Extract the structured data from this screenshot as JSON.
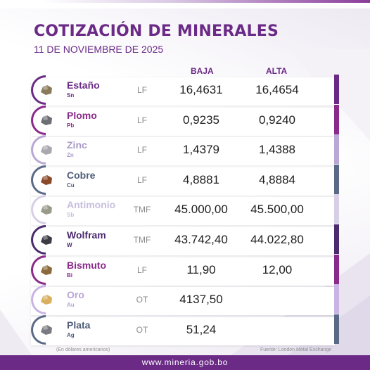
{
  "header": {
    "title": "COTIZACIÓN DE MINERALES",
    "date": "11 DE NOVIEMBRE DE 2025"
  },
  "columns": {
    "low": "BAJA",
    "high": "ALTA"
  },
  "minerals": [
    {
      "name": "Estaño",
      "symbol": "Sn",
      "unit": "LF",
      "low": "16,4631",
      "high": "16,4654",
      "accent": "#6a2a86",
      "name_color": "#6a2a86"
    },
    {
      "name": "Plomo",
      "symbol": "Pb",
      "unit": "LF",
      "low": "0,9235",
      "high": "0,9240",
      "accent": "#8a2a8a",
      "name_color": "#8a2a8a"
    },
    {
      "name": "Zinc",
      "symbol": "Zn",
      "unit": "LF",
      "low": "1,4379",
      "high": "1,4388",
      "accent": "#b9a8d6",
      "name_color": "#a99bc8"
    },
    {
      "name": "Cobre",
      "symbol": "Cu",
      "unit": "LF",
      "low": "4,8881",
      "high": "4,8884",
      "accent": "#5a6a86",
      "name_color": "#4f5d78"
    },
    {
      "name": "Antimonio",
      "symbol": "Sb",
      "unit": "TMF",
      "low": "45.000,00",
      "high": "45.500,00",
      "accent": "#d7cfe6",
      "name_color": "#c8bfdc"
    },
    {
      "name": "Wolfram",
      "symbol": "W",
      "unit": "TMF",
      "low": "43.742,40",
      "high": "44.022,80",
      "accent": "#4b2a6e",
      "name_color": "#4b2a6e"
    },
    {
      "name": "Bismuto",
      "symbol": "Bi",
      "unit": "LF",
      "low": "11,90",
      "high": "12,00",
      "accent": "#8a2a8a",
      "name_color": "#8a2a8a"
    },
    {
      "name": "Oro",
      "symbol": "Au",
      "unit": "OT",
      "low": "4137,50",
      "high": "",
      "accent": "#c9b3e3",
      "name_color": "#b9a5d6"
    },
    {
      "name": "Plata",
      "symbol": "Ag",
      "unit": "OT",
      "low": "51,24",
      "high": "",
      "accent": "#5a6a86",
      "name_color": "#4f5d78"
    }
  ],
  "footnotes": {
    "currency": "(En dólares americanos)",
    "source": "Fuente: London Metal Exchange"
  },
  "footer": {
    "url": "www.mineria.gob.bo"
  }
}
